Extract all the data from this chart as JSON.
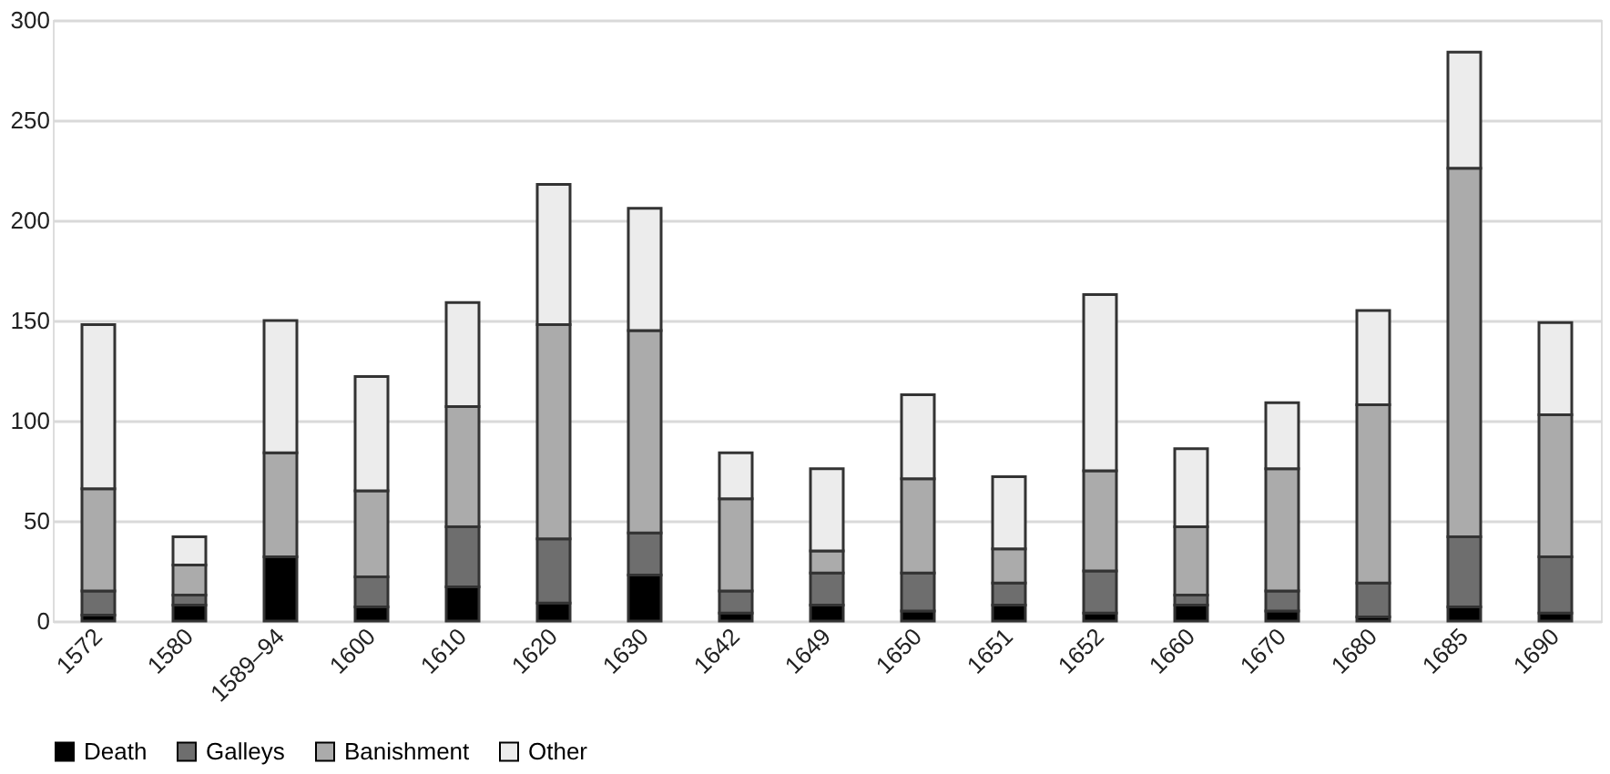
{
  "chart_data": {
    "type": "bar",
    "stacked": true,
    "categories": [
      "1572",
      "1580",
      "1589–94",
      "1600",
      "1610",
      "1620",
      "1630",
      "1642",
      "1649",
      "1650",
      "1651",
      "1652",
      "1660",
      "1670",
      "1680",
      "1685",
      "1690"
    ],
    "series": [
      {
        "name": "Death",
        "color": "#000000",
        "values": [
          3,
          8,
          32,
          7,
          17,
          9,
          23,
          4,
          8,
          5,
          8,
          4,
          8,
          5,
          2,
          7,
          4
        ]
      },
      {
        "name": "Galleys",
        "color": "#6e6e6e",
        "values": [
          12,
          5,
          0,
          15,
          30,
          32,
          21,
          11,
          16,
          19,
          11,
          21,
          5,
          10,
          17,
          35,
          28
        ]
      },
      {
        "name": "Banishment",
        "color": "#ababab",
        "values": [
          51,
          15,
          52,
          43,
          60,
          107,
          101,
          46,
          11,
          47,
          17,
          50,
          34,
          61,
          89,
          184,
          71
        ]
      },
      {
        "name": "Other",
        "color": "#ececec",
        "values": [
          82,
          14,
          66,
          57,
          52,
          70,
          61,
          23,
          41,
          42,
          36,
          88,
          39,
          33,
          47,
          58,
          46
        ]
      }
    ],
    "ylim": [
      0,
      300
    ],
    "yticks": [
      0,
      50,
      100,
      150,
      200,
      250,
      300
    ],
    "grid": "y",
    "legend": "bottom"
  }
}
